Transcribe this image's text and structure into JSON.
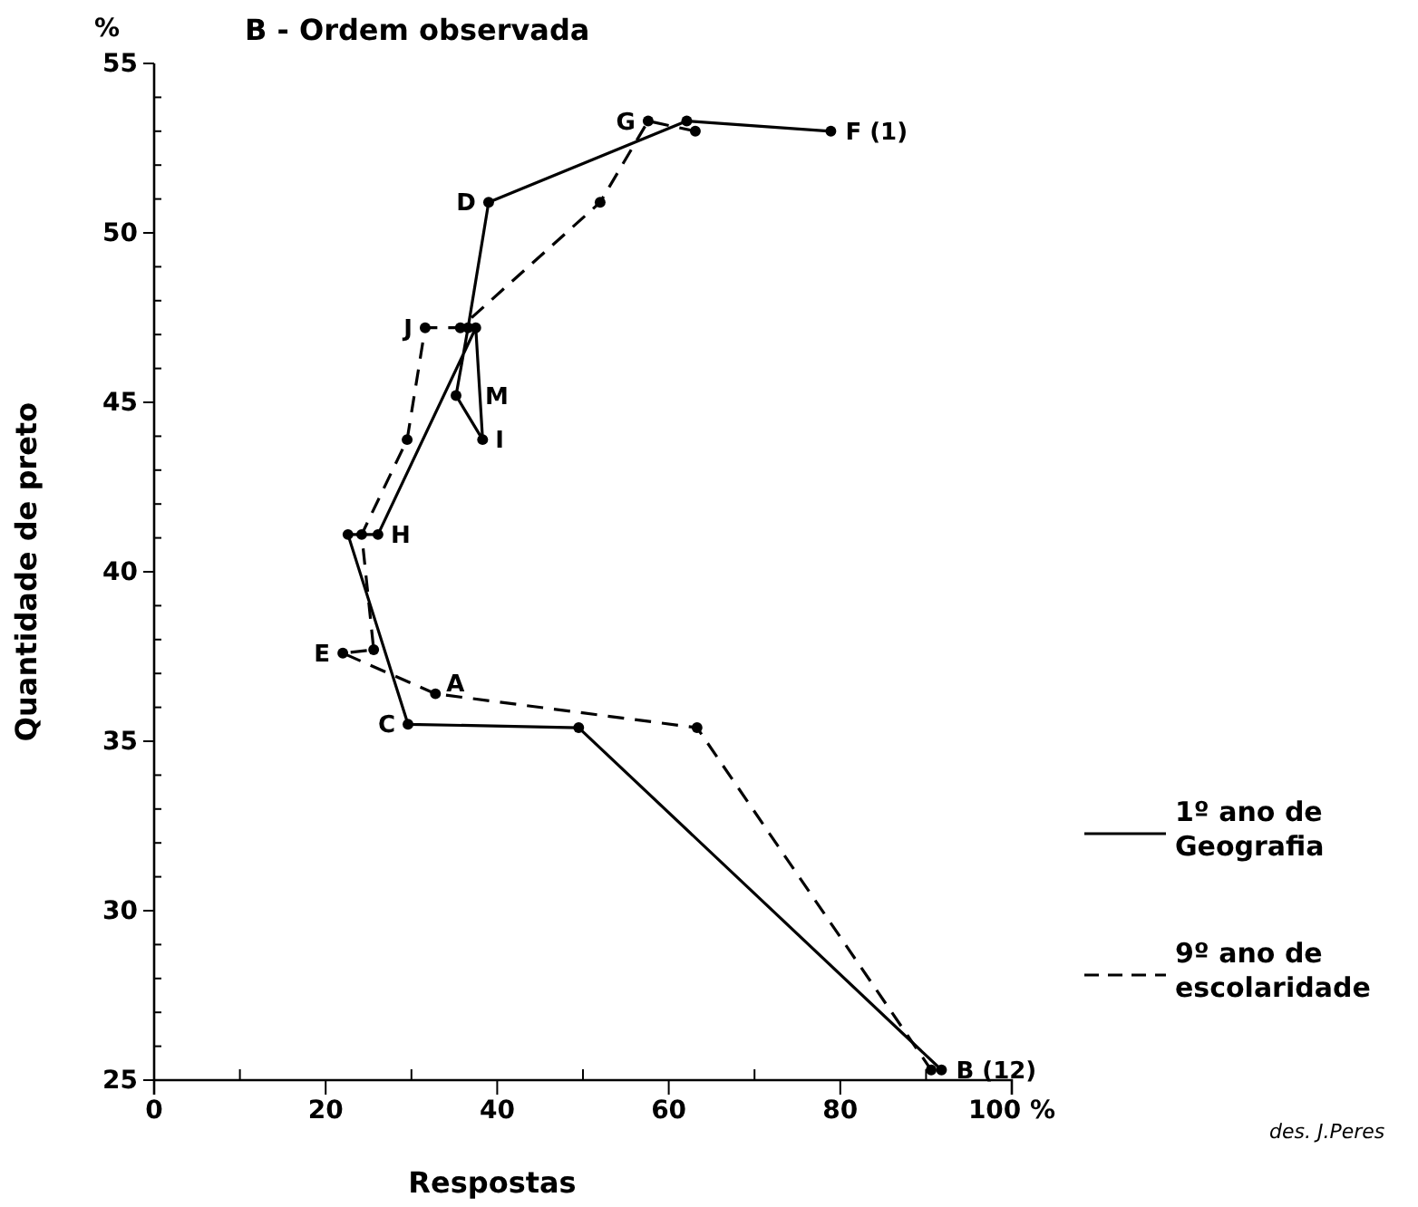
{
  "chart_data": {
    "type": "line",
    "title": "B - Ordem observada",
    "xlabel": "Respostas",
    "ylabel": "Quantidade de preto",
    "xlim": [
      0,
      100
    ],
    "ylim": [
      25,
      55
    ],
    "xticks": [
      0,
      {
        "value": 10,
        "label": null
      },
      20,
      {
        "value": 30,
        "label": null
      },
      40,
      {
        "value": 50,
        "label": null
      },
      60,
      {
        "value": 70,
        "label": null
      },
      80,
      {
        "value": 90,
        "label": null
      },
      {
        "value": 100,
        "label": "100 %"
      }
    ],
    "yticks": [
      25,
      {
        "value": 26,
        "label": null
      },
      {
        "value": 27,
        "label": null
      },
      {
        "value": 28,
        "label": null
      },
      {
        "value": 29,
        "label": null
      },
      30,
      {
        "value": 31,
        "label": null
      },
      {
        "value": 32,
        "label": null
      },
      {
        "value": 33,
        "label": null
      },
      {
        "value": 34,
        "label": null
      },
      35,
      {
        "value": 36,
        "label": null
      },
      {
        "value": 37,
        "label": null
      },
      {
        "value": 38,
        "label": null
      },
      {
        "value": 39,
        "label": null
      },
      40,
      {
        "value": 41,
        "label": null
      },
      {
        "value": 42,
        "label": null
      },
      {
        "value": 43,
        "label": null
      },
      {
        "value": 44,
        "label": null
      },
      45,
      {
        "value": 46,
        "label": null
      },
      {
        "value": 47,
        "label": null
      },
      {
        "value": 48,
        "label": null
      },
      {
        "value": 49,
        "label": null
      },
      50,
      {
        "value": 51,
        "label": null
      },
      {
        "value": 52,
        "label": null
      },
      {
        "value": 53,
        "label": null
      },
      {
        "value": 54,
        "label": null
      },
      55
    ],
    "grid": false,
    "legend": "right",
    "marker": "circle",
    "series": [
      {
        "name": "1º ano de Geografia",
        "color": "#000000",
        "line_style": "solid",
        "x": [
          78.9,
          62.1,
          39.0,
          36.6,
          35.2,
          38.3,
          37.5,
          26.1,
          22.6,
          29.6,
          49.5,
          91.8
        ],
        "values": [
          53.0,
          53.3,
          50.9,
          47.2,
          45.2,
          43.9,
          47.2,
          41.1,
          41.1,
          35.5,
          35.4,
          25.3
        ]
      },
      {
        "name": "9º ano de escolaridade",
        "color": "#000000",
        "line_style": "dashed",
        "x": [
          63.1,
          57.6,
          52.0,
          35.7,
          31.6,
          29.5,
          24.2,
          25.6,
          22.0,
          32.8,
          63.3,
          90.6
        ],
        "values": [
          53.0,
          53.3,
          50.9,
          47.2,
          47.2,
          43.9,
          41.1,
          37.7,
          37.6,
          36.4,
          35.4,
          25.3
        ]
      }
    ],
    "annotations": [
      "%",
      "des. J.Peres",
      {
        "text": "F (1)",
        "x": 78.9,
        "y": 53.0
      },
      {
        "text": "G",
        "x": 57.6,
        "y": 53.3
      },
      {
        "text": "D",
        "x": 39.0,
        "y": 50.9
      },
      {
        "text": "J",
        "x": 31.6,
        "y": 47.2
      },
      {
        "text": "M",
        "x": 35.2,
        "y": 45.2
      },
      {
        "text": "I",
        "x": 38.3,
        "y": 43.9
      },
      {
        "text": "H",
        "x": 26.1,
        "y": 41.1
      },
      {
        "text": "E",
        "x": 22.0,
        "y": 37.6
      },
      {
        "text": "A",
        "x": 32.8,
        "y": 36.4
      },
      {
        "text": "C",
        "x": 29.6,
        "y": 35.5
      },
      {
        "text": "B (12)",
        "x": 91.8,
        "y": 25.3
      }
    ]
  }
}
